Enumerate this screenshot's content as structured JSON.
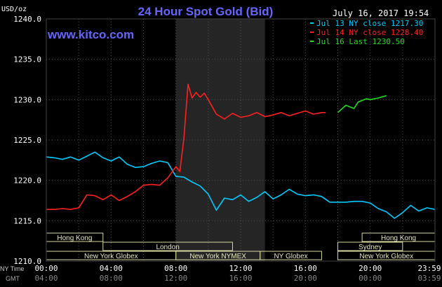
{
  "chart_data": {
    "type": "line",
    "title": "24 Hour Spot Gold (Bid)",
    "date": "July 16, 2017 19:54",
    "watermark": "www.kitco.com",
    "y_unit": "USD/oz",
    "ylim": [
      1210,
      1240
    ],
    "y_ticks": [
      "1240.0",
      "1235.0",
      "1230.0",
      "1225.0",
      "1220.0",
      "1215.0",
      "1210.0"
    ],
    "x_row_labels": {
      "ny": "NY Time",
      "gmt": "GMT"
    },
    "x_ticks_ny": [
      "00:00",
      "04:00",
      "08:00",
      "12:00",
      "16:00",
      "20:00",
      "23:59"
    ],
    "x_ticks_gmt": [
      "04:00",
      "08:00",
      "12:00",
      "16:00",
      "20:00",
      "00:00",
      "03:59"
    ],
    "legend": [
      {
        "label": "Jul 13 NY close 1217.30",
        "color": "#00ccff"
      },
      {
        "label": "Jul 14 NY close 1228.40",
        "color": "#ff2020"
      },
      {
        "label": "Jul 16 Last 1230.50",
        "color": "#20e020"
      }
    ],
    "shaded_hours": [
      8.0,
      13.5
    ],
    "series": [
      {
        "name": "Jul 13 NY close 1217.30",
        "color": "#00ccff",
        "x": [
          0,
          0.5,
          1,
          1.5,
          2,
          2.5,
          3,
          3.5,
          4,
          4.5,
          5,
          5.5,
          6,
          6.5,
          7,
          7.5,
          8,
          8.5,
          9,
          9.5,
          10,
          10.5,
          11,
          11.5,
          12,
          12.5,
          13,
          13.5,
          14,
          14.5,
          15,
          15.5,
          16,
          16.5,
          17,
          17.5,
          18,
          18.5,
          19,
          19.5,
          20,
          20.5,
          21,
          21.5,
          22,
          22.5,
          23,
          23.5,
          24
        ],
        "y": [
          1222.9,
          1222.8,
          1222.6,
          1222.9,
          1222.5,
          1223.0,
          1223.5,
          1222.8,
          1222.4,
          1222.9,
          1222.0,
          1221.6,
          1221.7,
          1222.1,
          1222.4,
          1222.2,
          1220.5,
          1220.4,
          1219.8,
          1219.3,
          1218.3,
          1216.3,
          1217.8,
          1217.6,
          1218.2,
          1217.4,
          1217.9,
          1218.6,
          1217.7,
          1218.2,
          1218.9,
          1218.3,
          1218.1,
          1218.2,
          1218.0,
          1217.3,
          1217.3,
          1217.3,
          1217.4,
          1217.4,
          1217.2,
          1216.5,
          1216.1,
          1215.3,
          1216.0,
          1216.9,
          1216.2,
          1216.6,
          1216.4
        ]
      },
      {
        "name": "Jul 14 NY close 1228.40",
        "color": "#ff2020",
        "x": [
          0,
          0.5,
          1,
          1.5,
          2,
          2.5,
          3,
          3.5,
          4,
          4.5,
          5,
          5.5,
          6,
          6.5,
          7,
          7.5,
          8,
          8.25,
          8.5,
          8.75,
          9,
          9.25,
          9.5,
          9.75,
          10,
          10.5,
          11,
          11.5,
          12,
          12.5,
          13,
          13.5,
          14,
          14.5,
          15,
          15.5,
          16,
          16.5,
          17,
          17.25
        ],
        "y": [
          1216.4,
          1216.4,
          1216.5,
          1216.4,
          1216.6,
          1218.2,
          1218.1,
          1217.6,
          1218.2,
          1217.5,
          1218.0,
          1218.6,
          1219.4,
          1219.5,
          1219.4,
          1220.3,
          1221.7,
          1221.1,
          1225.3,
          1231.9,
          1230.2,
          1230.9,
          1230.3,
          1230.8,
          1230.0,
          1228.2,
          1227.6,
          1228.3,
          1227.8,
          1228.0,
          1228.4,
          1227.9,
          1228.1,
          1228.4,
          1228.0,
          1228.3,
          1228.6,
          1228.2,
          1228.4,
          1228.4
        ]
      },
      {
        "name": "Jul 16 Last 1230.50",
        "color": "#20e020",
        "x": [
          18,
          18.5,
          19,
          19.25,
          19.5,
          19.75,
          20,
          20.5,
          21
        ],
        "y": [
          1228.4,
          1229.3,
          1228.9,
          1229.7,
          1229.9,
          1230.1,
          1230.0,
          1230.2,
          1230.5
        ]
      }
    ],
    "sessions": [
      {
        "label": "Hong Kong",
        "start": 0,
        "end": 3.5,
        "row": 0
      },
      {
        "label": "London",
        "start": 3.5,
        "end": 11.5,
        "row": 1
      },
      {
        "label": "New York Globex",
        "start": 0,
        "end": 8.0,
        "row": 2
      },
      {
        "label": "New York NYMEX",
        "start": 8.0,
        "end": 13.2,
        "row": 2
      },
      {
        "label": "NY Globex",
        "start": 13.2,
        "end": 17.0,
        "row": 2
      },
      {
        "label": "Hong Kong",
        "start": 19.5,
        "end": 24,
        "row": 0
      },
      {
        "label": "Sydney",
        "start": 18.0,
        "end": 22.0,
        "row": 1
      },
      {
        "label": "New York Globex",
        "start": 18.0,
        "end": 24,
        "row": 2
      }
    ]
  }
}
